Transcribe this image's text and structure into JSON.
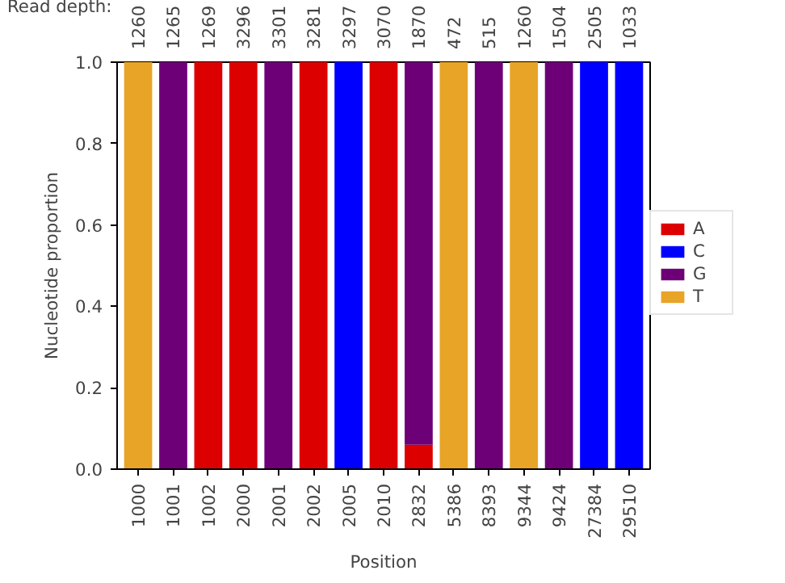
{
  "chart_data": {
    "type": "bar",
    "stacked": true,
    "xlabel": "Position",
    "ylabel": "Nucleotide proportion",
    "categories": [
      "1000",
      "1001",
      "1002",
      "2000",
      "2001",
      "2002",
      "2005",
      "2010",
      "2832",
      "5386",
      "8393",
      "9344",
      "9424",
      "27384",
      "29510"
    ],
    "series": [
      {
        "name": "A",
        "color": "#dd0000",
        "values": [
          null,
          null,
          1,
          1,
          null,
          1,
          null,
          1,
          0.06,
          null,
          null,
          null,
          null,
          null,
          null
        ]
      },
      {
        "name": "C",
        "color": "#0000ff",
        "values": [
          null,
          null,
          null,
          null,
          null,
          null,
          1,
          null,
          null,
          null,
          null,
          null,
          null,
          1,
          1
        ]
      },
      {
        "name": "G",
        "color": "#6e0077",
        "values": [
          null,
          1,
          null,
          null,
          1,
          null,
          null,
          null,
          0.94,
          null,
          1,
          null,
          1,
          null,
          null
        ]
      },
      {
        "name": "T",
        "color": "#e8a427",
        "values": [
          1,
          null,
          null,
          null,
          null,
          null,
          null,
          null,
          null,
          1,
          null,
          1,
          null,
          null,
          null
        ]
      }
    ],
    "ylim": [
      0,
      1.0
    ],
    "yticks": [
      {
        "value": 0,
        "label": "0.0"
      },
      {
        "value": 0.2,
        "label": "0.2"
      },
      {
        "value": 0.4,
        "label": "0.4"
      },
      {
        "value": 0.6,
        "label": "0.6"
      },
      {
        "value": 0.8,
        "label": "0.8"
      },
      {
        "value": 1.0,
        "label": "1.0"
      }
    ],
    "legend": "right",
    "grid": false,
    "annotations": [
      "Read depth:",
      "1260",
      "1265",
      "1269",
      "3296",
      "3301",
      "3281",
      "3297",
      "3070",
      "1870",
      "472",
      "515",
      "1260",
      "1504",
      "2505",
      "1033"
    ]
  }
}
